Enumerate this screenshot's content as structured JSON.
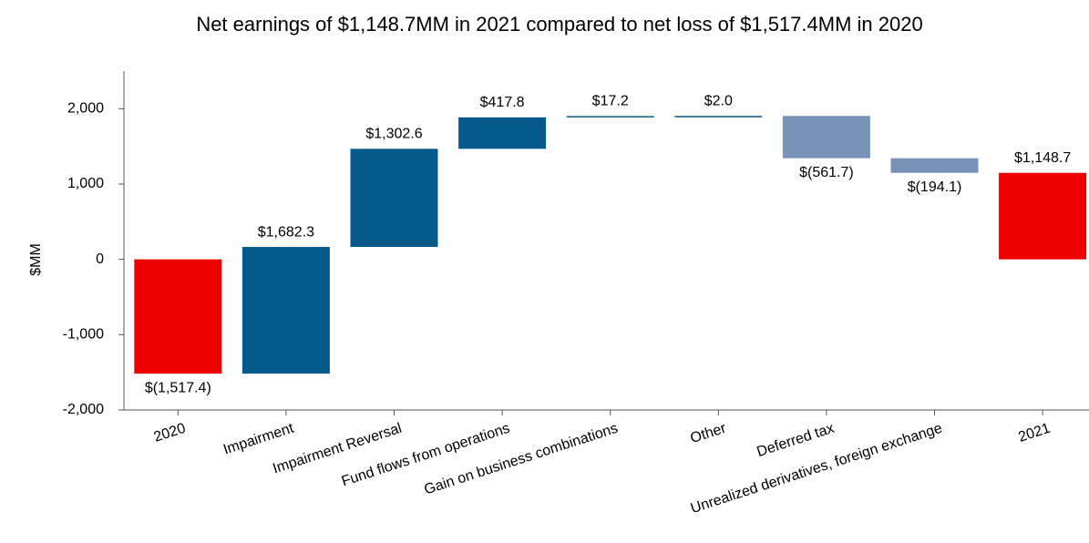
{
  "chart_data": {
    "type": "waterfall",
    "title": "Net earnings of $1,148.7MM in 2021 compared to net loss of $1,517.4MM in 2020",
    "ylabel": "$MM",
    "categories": [
      "2020",
      "Impairment",
      "Impairment Reversal",
      "Fund flows from operations",
      "Gain on business combinations",
      "Other",
      "Deferred tax",
      "Unrealized derivatives, foreign exchange",
      "2021"
    ],
    "measure": [
      "absolute",
      "relative",
      "relative",
      "relative",
      "relative",
      "relative",
      "relative",
      "relative",
      "absolute"
    ],
    "values": [
      -1517.4,
      1682.3,
      1302.6,
      417.8,
      17.2,
      2.0,
      -561.7,
      -194.1,
      1148.7
    ],
    "value_labels": [
      "$(1,517.4)",
      "$1,682.3",
      "$1,302.6",
      "$417.8",
      "$17.2",
      "$2.0",
      "$(561.7)",
      "$(194.1)",
      "$1,148.7"
    ],
    "colors": [
      "#ee0000",
      "#055a8c",
      "#055a8c",
      "#055a8c",
      "#055a8c",
      "#055a8c",
      "#7893b8",
      "#7893b8",
      "#ee0000"
    ],
    "ylim": [
      -2000,
      2500
    ],
    "yticks": [
      {
        "value": -2000,
        "label": "-2,000"
      },
      {
        "value": -1000,
        "label": "-1,000"
      },
      0,
      {
        "value": 1000,
        "label": "1,000"
      },
      {
        "value": 2000,
        "label": "2,000"
      }
    ],
    "grid": false
  }
}
